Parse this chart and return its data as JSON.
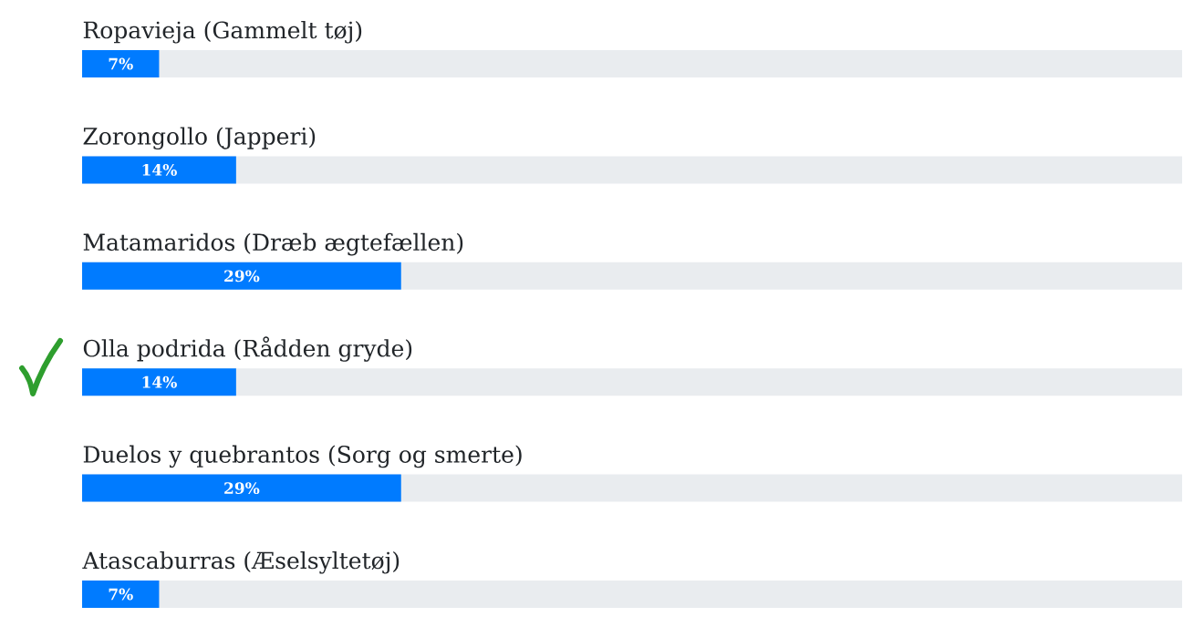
{
  "chart_data": {
    "type": "bar",
    "orientation": "horizontal",
    "categories": [
      "Ropavieja (Gammelt tøj)",
      "Zorongollo (Japperi)",
      "Matamaridos (Dræb ægtefællen)",
      "Olla podrida (Rådden gryde)",
      "Duelos y quebrantos (Sorg og smerte)",
      "Atascaburras (Æselsyltetøj)"
    ],
    "values": [
      7,
      14,
      29,
      14,
      29,
      7
    ],
    "value_labels": [
      "7%",
      "14%",
      "29%",
      "14%",
      "29%",
      "7%"
    ],
    "color": "#007bff",
    "xlim": [
      0,
      100
    ],
    "tick_labels": "y"
  }
}
